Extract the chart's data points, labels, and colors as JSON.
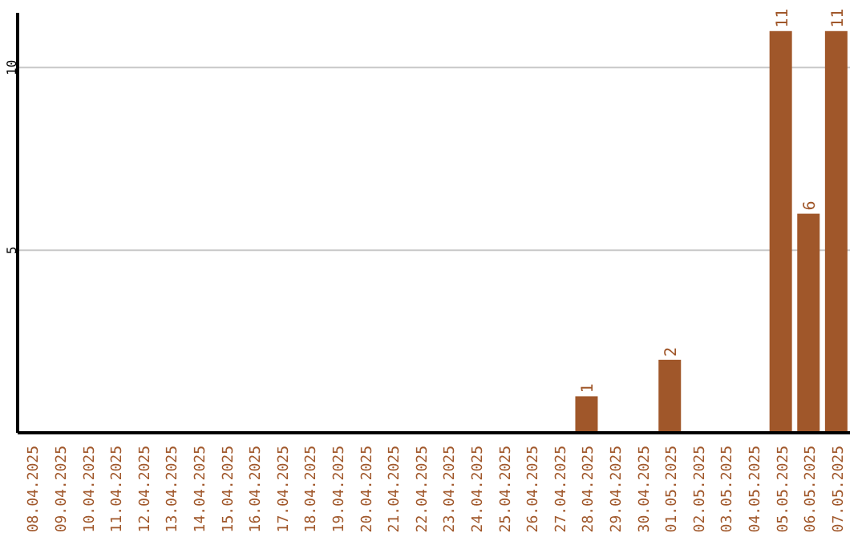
{
  "chart_data": {
    "type": "bar",
    "categories": [
      "08.04.2025",
      "09.04.2025",
      "10.04.2025",
      "11.04.2025",
      "12.04.2025",
      "13.04.2025",
      "14.04.2025",
      "15.04.2025",
      "16.04.2025",
      "17.04.2025",
      "18.04.2025",
      "19.04.2025",
      "20.04.2025",
      "21.04.2025",
      "22.04.2025",
      "23.04.2025",
      "24.04.2025",
      "25.04.2025",
      "26.04.2025",
      "27.04.2025",
      "28.04.2025",
      "29.04.2025",
      "30.04.2025",
      "01.05.2025",
      "02.05.2025",
      "03.05.2025",
      "04.05.2025",
      "05.05.2025",
      "06.05.2025",
      "07.05.2025"
    ],
    "values": [
      0,
      0,
      0,
      0,
      0,
      0,
      0,
      0,
      0,
      0,
      0,
      0,
      0,
      0,
      0,
      0,
      0,
      0,
      0,
      0,
      1,
      0,
      0,
      2,
      0,
      0,
      0,
      11,
      6,
      11
    ],
    "value_labels": [
      null,
      null,
      null,
      null,
      null,
      null,
      null,
      null,
      null,
      null,
      null,
      null,
      null,
      null,
      null,
      null,
      null,
      null,
      null,
      null,
      "1",
      null,
      null,
      "2",
      null,
      null,
      null,
      "11",
      "6",
      "11"
    ],
    "color": "#a0572a",
    "ylim": [
      0,
      11.5
    ],
    "yticks": [
      5,
      10
    ],
    "grid": "y"
  }
}
